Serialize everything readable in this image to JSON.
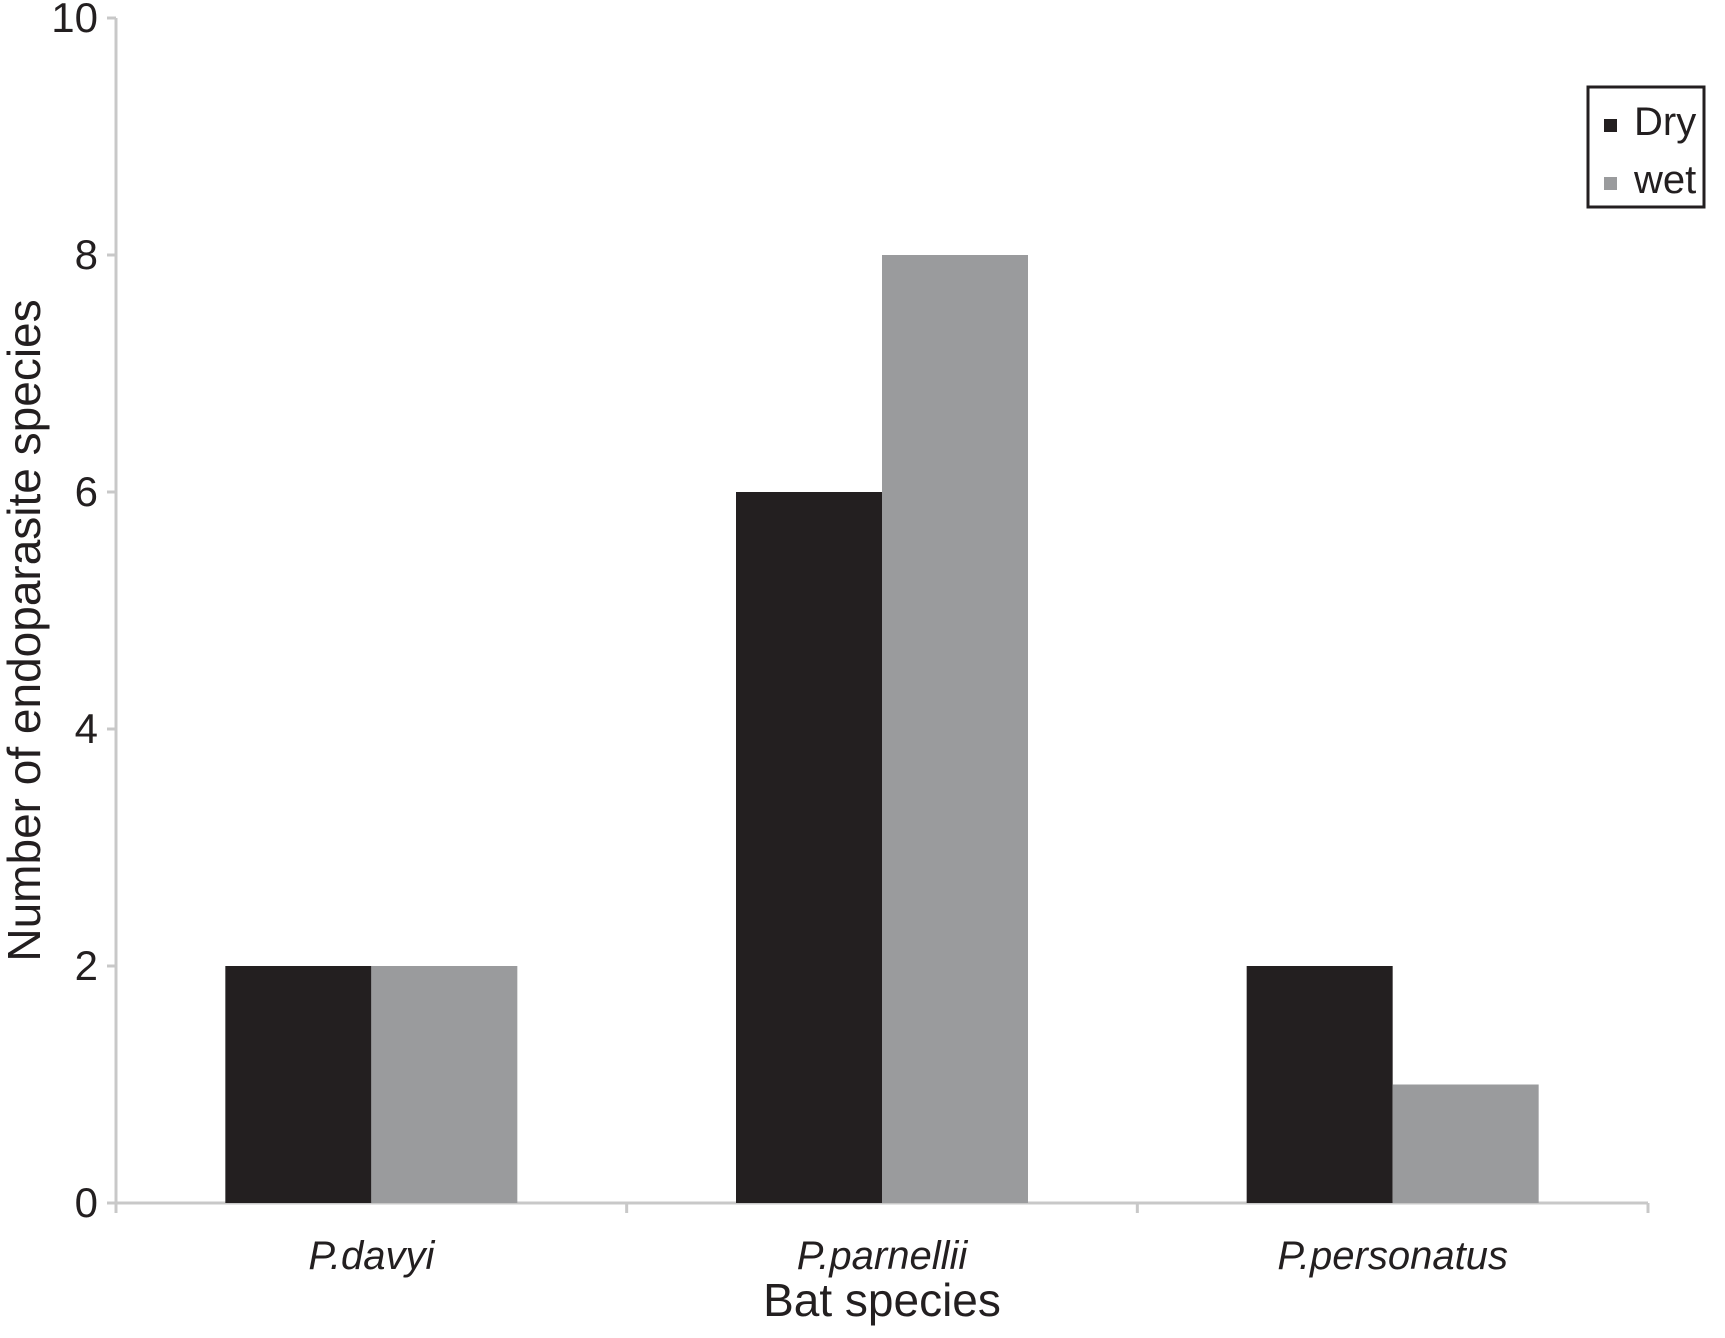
{
  "chart_data": {
    "type": "bar",
    "title": "",
    "xlabel": "Bat species",
    "ylabel": "Number of endoparasite species",
    "categories": [
      "P.davyi",
      "P.parnellii",
      "P.personatus"
    ],
    "series": [
      {
        "name": "Dry",
        "values": [
          2,
          6,
          2
        ],
        "color": "#231f20"
      },
      {
        "name": "wet",
        "values": [
          2,
          8,
          1
        ],
        "color": "#9a9b9d"
      }
    ],
    "ylim": [
      0,
      10
    ],
    "yticks": [
      0,
      2,
      4,
      6,
      8,
      10
    ],
    "grid": false,
    "legend_position": "top-right"
  },
  "colors": {
    "axis": "#c8c8c8",
    "text": "#231f20",
    "legend_border": "#231f20"
  }
}
